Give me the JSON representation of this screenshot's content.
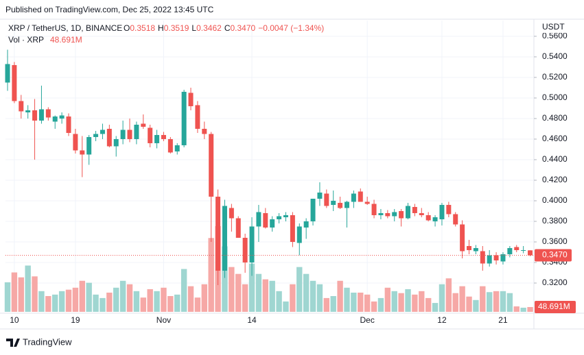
{
  "chart_data": {
    "type": "candlestick",
    "published": "Published on TradingView.com, Dec 25, 2022 13:45 UTC",
    "title": "XRP / TetherUS, 1D, BINANCE",
    "ohlc": [
      {
        "key": "O",
        "value": "0.3518"
      },
      {
        "key": "H",
        "value": "0.3519"
      },
      {
        "key": "L",
        "value": "0.3462"
      },
      {
        "key": "C",
        "value": "0.3470"
      }
    ],
    "change": "−0.0047 (−1.34%)",
    "currency": "USDT",
    "last_price_label": "0.3470",
    "brand": "TradingView",
    "up_color": "#26a69a",
    "down_color": "#ef5350",
    "volume_up_color": "#9fd6d1",
    "volume_down_color": "#f6a8a6",
    "categories": [
      null,
      "10",
      null,
      null,
      null,
      null,
      null,
      null,
      null,
      null,
      "19",
      null,
      null,
      null,
      null,
      null,
      null,
      null,
      null,
      null,
      null,
      null,
      null,
      "Nov",
      null,
      null,
      null,
      null,
      null,
      null,
      null,
      null,
      null,
      null,
      null,
      null,
      "14",
      null,
      null,
      null,
      null,
      null,
      null,
      null,
      null,
      null,
      null,
      null,
      null,
      null,
      null,
      null,
      null,
      "Dec",
      null,
      null,
      null,
      null,
      null,
      null,
      null,
      null,
      null,
      null,
      "12",
      null,
      null,
      null,
      null,
      null,
      null,
      null,
      null,
      "21",
      null,
      null,
      null,
      null
    ],
    "open": [
      0.515,
      0.532,
      0.497,
      0.486,
      0.488,
      0.478,
      0.489,
      0.477,
      0.48,
      0.482,
      0.465,
      0.449,
      0.445,
      0.462,
      0.465,
      0.47,
      0.453,
      0.46,
      0.469,
      0.46,
      0.475,
      0.471,
      0.456,
      0.464,
      0.46,
      0.448,
      0.454,
      0.505,
      0.493,
      0.47,
      0.465,
      0.404,
      0.332,
      0.393,
      0.383,
      0.364,
      0.34,
      0.375,
      0.388,
      0.374,
      0.382,
      0.384,
      0.386,
      0.359,
      0.374,
      0.38,
      0.402,
      0.407,
      0.396,
      0.398,
      0.393,
      0.399,
      0.409,
      0.399,
      0.397,
      0.386,
      0.388,
      0.385,
      0.39,
      0.383,
      0.394,
      0.388,
      0.386,
      0.38,
      0.382,
      0.396,
      0.387,
      0.377,
      0.356,
      0.351,
      0.351,
      0.339,
      0.347,
      0.341,
      0.348,
      0.355,
      0.352,
      0.3518
    ],
    "high": [
      0.547,
      0.535,
      0.503,
      0.493,
      0.499,
      0.512,
      0.491,
      0.483,
      0.486,
      0.485,
      0.47,
      0.463,
      0.464,
      0.468,
      0.475,
      0.474,
      0.463,
      0.478,
      0.48,
      0.477,
      0.484,
      0.474,
      0.469,
      0.467,
      0.462,
      0.456,
      0.508,
      0.51,
      0.497,
      0.477,
      0.467,
      0.411,
      0.401,
      0.397,
      0.385,
      0.368,
      0.384,
      0.396,
      0.393,
      0.385,
      0.388,
      0.389,
      0.389,
      0.378,
      0.383,
      0.402,
      0.418,
      0.411,
      0.41,
      0.404,
      0.4,
      0.41,
      0.412,
      0.404,
      0.401,
      0.392,
      0.391,
      0.392,
      0.392,
      0.398,
      0.397,
      0.393,
      0.389,
      0.386,
      0.398,
      0.399,
      0.389,
      0.381,
      0.362,
      0.357,
      0.356,
      0.352,
      0.35,
      0.35,
      0.356,
      0.357,
      0.356,
      0.3519
    ],
    "low": [
      0.507,
      0.495,
      0.48,
      0.48,
      0.44,
      0.475,
      0.478,
      0.47,
      0.475,
      0.463,
      0.446,
      0.423,
      0.435,
      0.458,
      0.46,
      0.452,
      0.443,
      0.455,
      0.457,
      0.455,
      0.47,
      0.452,
      0.451,
      0.458,
      0.446,
      0.445,
      0.452,
      0.488,
      0.466,
      0.46,
      0.36,
      0.318,
      0.325,
      0.37,
      0.364,
      0.33,
      0.327,
      0.36,
      0.373,
      0.37,
      0.378,
      0.38,
      0.355,
      0.347,
      0.363,
      0.376,
      0.395,
      0.393,
      0.39,
      0.392,
      0.374,
      0.393,
      0.399,
      0.396,
      0.383,
      0.382,
      0.383,
      0.38,
      0.375,
      0.382,
      0.385,
      0.384,
      0.38,
      0.375,
      0.376,
      0.384,
      0.375,
      0.344,
      0.348,
      0.348,
      0.332,
      0.336,
      0.338,
      0.338,
      0.345,
      0.35,
      0.349,
      0.3462
    ],
    "close": [
      0.533,
      0.497,
      0.487,
      0.488,
      0.478,
      0.489,
      0.481,
      0.482,
      0.483,
      0.466,
      0.449,
      0.445,
      0.462,
      0.465,
      0.469,
      0.453,
      0.46,
      0.469,
      0.46,
      0.474,
      0.472,
      0.456,
      0.464,
      0.46,
      0.447,
      0.454,
      0.506,
      0.492,
      0.47,
      0.465,
      0.404,
      0.332,
      0.395,
      0.383,
      0.364,
      0.34,
      0.375,
      0.389,
      0.374,
      0.382,
      0.385,
      0.386,
      0.36,
      0.375,
      0.38,
      0.402,
      0.408,
      0.395,
      0.4,
      0.393,
      0.399,
      0.407,
      0.399,
      0.397,
      0.386,
      0.388,
      0.385,
      0.389,
      0.383,
      0.395,
      0.388,
      0.386,
      0.381,
      0.384,
      0.396,
      0.387,
      0.377,
      0.351,
      0.352,
      0.354,
      0.339,
      0.347,
      0.342,
      0.348,
      0.354,
      0.352,
      0.352,
      0.347
    ],
    "volume": {
      "name": "Vol · XRP",
      "last_label": "48.691M",
      "values": [
        300,
        400,
        350,
        470,
        360,
        210,
        160,
        175,
        210,
        225,
        245,
        315,
        295,
        175,
        140,
        195,
        245,
        315,
        280,
        210,
        145,
        230,
        210,
        245,
        160,
        175,
        435,
        260,
        145,
        280,
        750,
        870,
        665,
        455,
        385,
        280,
        490,
        385,
        330,
        315,
        210,
        105,
        280,
        455,
        385,
        315,
        280,
        140,
        160,
        315,
        245,
        195,
        195,
        175,
        105,
        140,
        245,
        210,
        190,
        230,
        175,
        210,
        140,
        90,
        280,
        340,
        190,
        260,
        155,
        120,
        260,
        200,
        210,
        210,
        190,
        55,
        42,
        48.691
      ]
    },
    "ylim": [
      0.292,
      0.5753
    ],
    "yticks": [
      {
        "value": 0.32,
        "label": "0.3200"
      },
      {
        "value": 0.34,
        "label": "0.3400"
      },
      {
        "value": 0.36,
        "label": "0.3600"
      },
      {
        "value": 0.38,
        "label": "0.3800"
      },
      {
        "value": 0.4,
        "label": "0.4000"
      },
      {
        "value": 0.42,
        "label": "0.4200"
      },
      {
        "value": 0.44,
        "label": "0.4400"
      },
      {
        "value": 0.46,
        "label": "0.4600"
      },
      {
        "value": 0.48,
        "label": "0.4800"
      },
      {
        "value": 0.5,
        "label": "0.5000"
      },
      {
        "value": 0.52,
        "label": "0.5200"
      },
      {
        "value": 0.54,
        "label": "0.5400"
      },
      {
        "value": 0.56,
        "label": "0.5600"
      }
    ],
    "grid": true
  }
}
